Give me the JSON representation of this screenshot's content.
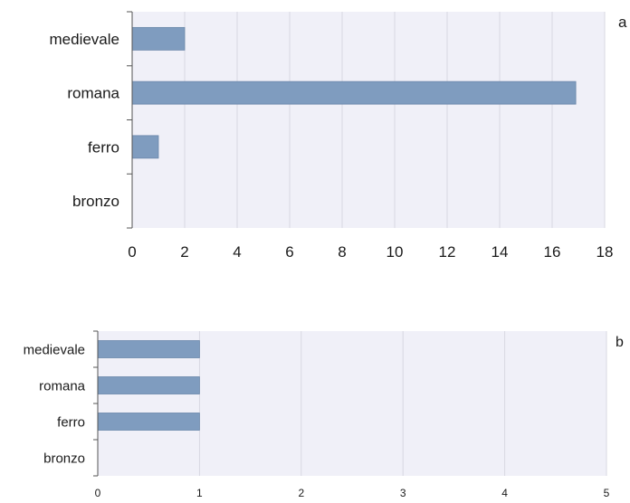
{
  "chart_data": [
    {
      "type": "bar",
      "orientation": "horizontal",
      "panel_label": "a",
      "categories": [
        "medievale",
        "romana",
        "ferro",
        "bronzo"
      ],
      "values": [
        2,
        16.9,
        1,
        0
      ],
      "xlim": [
        0,
        18
      ],
      "xticks": [
        "0",
        "2",
        "4",
        "6",
        "8",
        "10",
        "12",
        "14",
        "16",
        "18"
      ],
      "grid": true,
      "bar_color": "#7f9cbf",
      "plot_bg": "#f0f0f8"
    },
    {
      "type": "bar",
      "orientation": "horizontal",
      "panel_label": "b",
      "categories": [
        "medievale",
        "romana",
        "ferro",
        "bronzo"
      ],
      "values": [
        1,
        1,
        1,
        0
      ],
      "xlim": [
        0,
        5
      ],
      "xticks": [
        "0",
        "1",
        "2",
        "3",
        "4",
        "5"
      ],
      "grid": true,
      "bar_color": "#7f9cbf",
      "plot_bg": "#f0f0f8"
    }
  ]
}
